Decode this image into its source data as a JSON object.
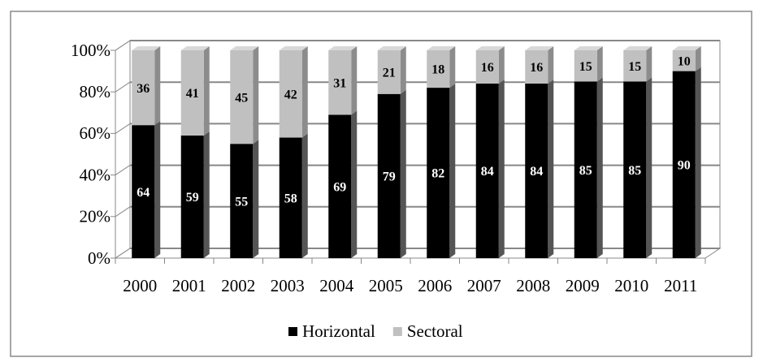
{
  "chart_data": {
    "type": "stacked_bar_3d",
    "categories": [
      "2000",
      "2001",
      "2002",
      "2003",
      "2004",
      "2005",
      "2006",
      "2007",
      "2008",
      "2009",
      "2010",
      "2011"
    ],
    "series": [
      {
        "name": "Horizontal",
        "color": "#000000",
        "values": [
          64,
          59,
          55,
          58,
          69,
          79,
          82,
          84,
          84,
          85,
          85,
          90
        ]
      },
      {
        "name": "Sectoral",
        "color": "#c0c0c0",
        "values": [
          36,
          41,
          45,
          42,
          31,
          21,
          18,
          16,
          16,
          15,
          15,
          10
        ]
      }
    ],
    "ylim": [
      0,
      100
    ],
    "yticks": [
      {
        "value": 0,
        "label": "0%"
      },
      {
        "value": 20,
        "label": "20%"
      },
      {
        "value": 40,
        "label": "40%"
      },
      {
        "value": 60,
        "label": "60%"
      },
      {
        "value": 80,
        "label": "80%"
      },
      {
        "value": 100,
        "label": "100%"
      }
    ],
    "grid": true,
    "legend": "bottom"
  }
}
